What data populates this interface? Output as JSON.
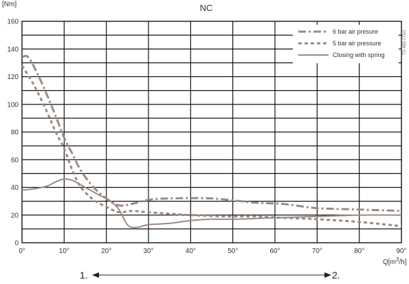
{
  "chart_data": {
    "type": "line",
    "title": "NC",
    "ylabel": "[Nm]",
    "xlabel_prefix": "Q[m",
    "xlabel_sup": "3",
    "xlabel_suffix": "/h]",
    "ylim": [
      0,
      160
    ],
    "xlim": [
      0,
      90
    ],
    "yticks": [
      "0",
      "20",
      "40",
      "60",
      "80",
      "100",
      "120",
      "140",
      "160"
    ],
    "xticks": [
      "0°",
      "10°",
      "20°",
      "30°",
      "40°",
      "50°",
      "60°",
      "70°",
      "80°",
      "90°"
    ],
    "grid": true,
    "legend_position": "top-right",
    "series": [
      {
        "name": "6 bar air presure",
        "style": "dash-dot",
        "color": "#9a8a82",
        "points": [
          [
            0,
            134
          ],
          [
            1.5,
            134
          ],
          [
            4,
            120
          ],
          [
            7,
            99
          ],
          [
            10,
            76
          ],
          [
            12,
            64
          ],
          [
            14,
            52
          ],
          [
            17,
            40
          ],
          [
            20,
            32
          ],
          [
            23,
            27
          ],
          [
            26,
            28
          ],
          [
            30,
            31
          ],
          [
            35,
            32
          ],
          [
            45,
            32
          ],
          [
            55,
            29
          ],
          [
            62,
            28
          ],
          [
            70,
            25
          ],
          [
            80,
            24
          ],
          [
            90,
            23
          ]
        ]
      },
      {
        "name": "5 bar air pressure",
        "style": "dashed",
        "color": "#9a8a82",
        "points": [
          [
            0,
            128
          ],
          [
            3,
            113
          ],
          [
            6,
            94
          ],
          [
            8,
            80
          ],
          [
            10,
            68
          ],
          [
            12,
            52
          ],
          [
            14,
            40
          ],
          [
            17,
            31
          ],
          [
            20,
            26
          ],
          [
            23,
            22
          ],
          [
            26,
            23
          ],
          [
            30,
            22
          ],
          [
            35,
            21
          ],
          [
            40,
            20
          ],
          [
            48,
            19
          ],
          [
            55,
            19
          ],
          [
            62,
            18
          ],
          [
            70,
            17
          ],
          [
            80,
            15
          ],
          [
            90,
            12
          ]
        ]
      },
      {
        "name": "Closing with spring",
        "style": "solid",
        "color": "#9a8a82",
        "points": [
          [
            0,
            38
          ],
          [
            3,
            39
          ],
          [
            6,
            41
          ],
          [
            8,
            44
          ],
          [
            10,
            46
          ],
          [
            12,
            45
          ],
          [
            15,
            40
          ],
          [
            18,
            35
          ],
          [
            21,
            30
          ],
          [
            23,
            24
          ],
          [
            25,
            13
          ],
          [
            27,
            11
          ],
          [
            30,
            13
          ],
          [
            35,
            14
          ],
          [
            40,
            16
          ],
          [
            45,
            17
          ],
          [
            50,
            17
          ],
          [
            60,
            18
          ],
          [
            70,
            19
          ],
          [
            80,
            20
          ],
          [
            90,
            20
          ]
        ]
      }
    ],
    "annotations": {
      "side_code": "TD 483-175/1",
      "range_start": "1.",
      "range_end": "2."
    }
  }
}
